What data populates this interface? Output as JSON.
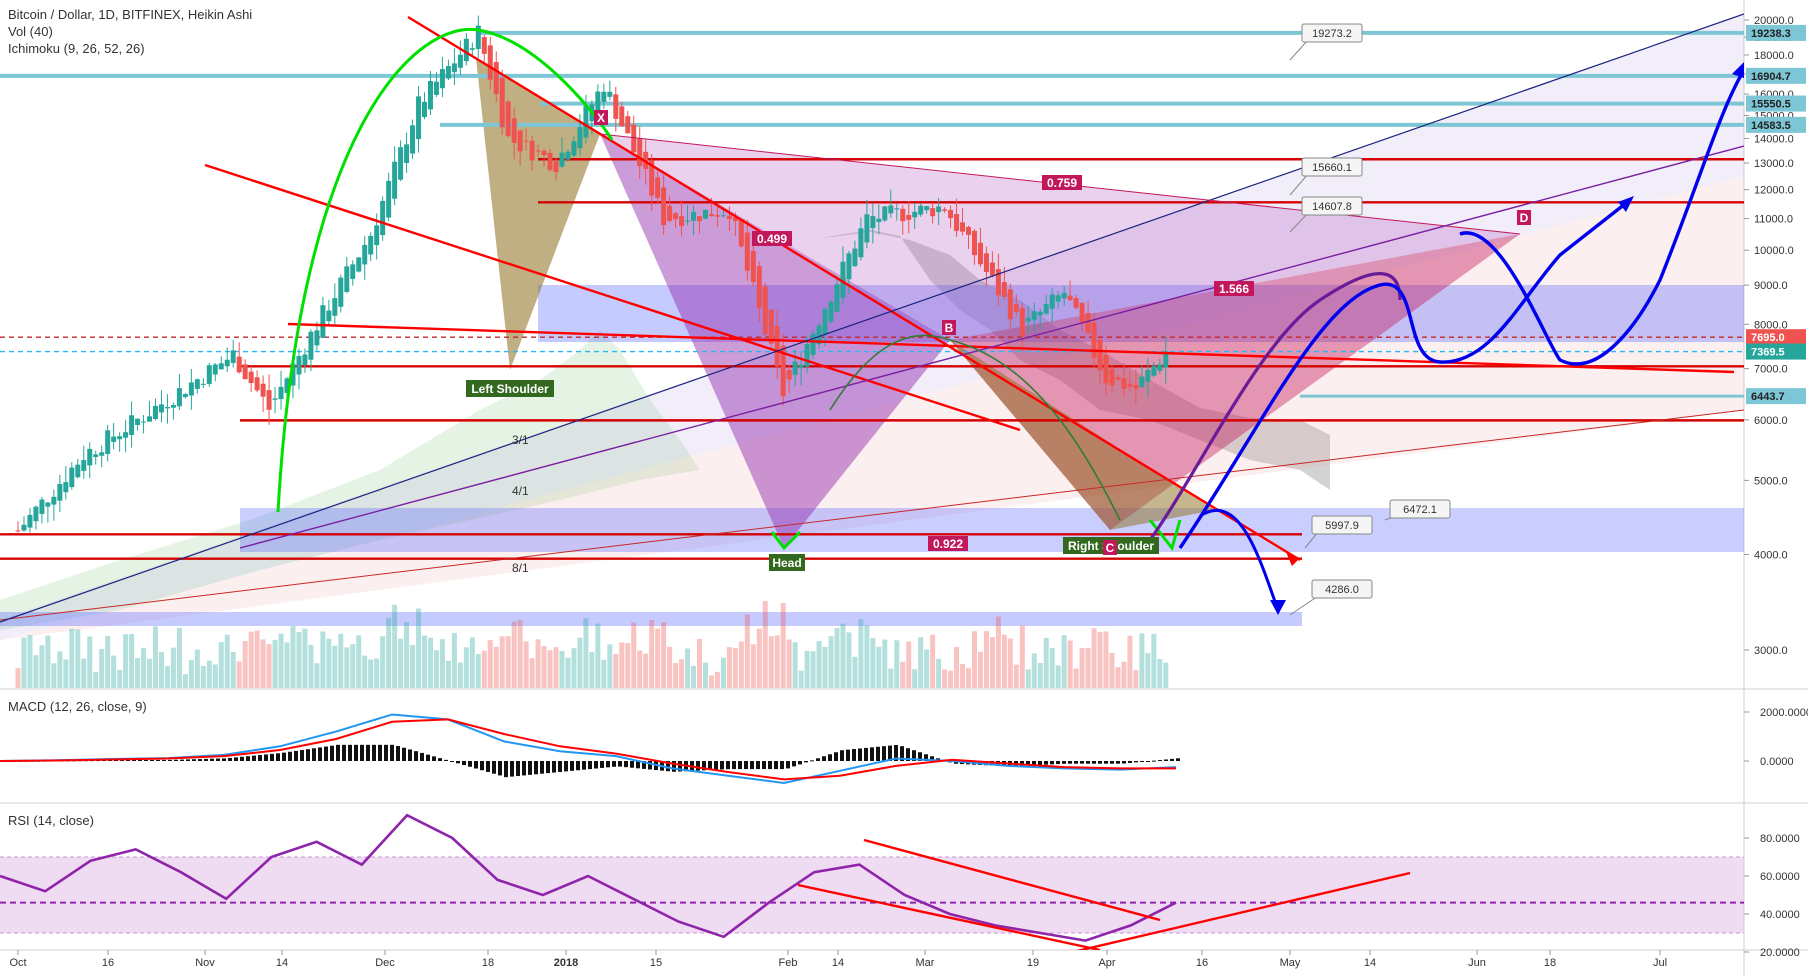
{
  "header": {
    "title": "Bitcoin / Dollar, 1D, BITFINEX, Heikin Ashi",
    "volume": "Vol (40)",
    "ichimoku": "Ichimoku (9, 26, 52, 26)"
  },
  "colors": {
    "up": "#26a69a",
    "down": "#ef5350",
    "trend_red": "#ff0000",
    "forecast_blue": "#0000ee",
    "hs_green": "#00ee00",
    "harmonic": "#9c27b0",
    "level_cyan": "#7cc6d6",
    "zone_blue": "#9aa3ff",
    "rsi_line": "#8e24aa",
    "macd_line": "#2196f3",
    "signal_line": "#ff0000"
  },
  "chart_data": [
    {
      "type": "candlestick",
      "title": "Bitcoin / Dollar, 1D, BITFINEX, Heikin Ashi",
      "y_scale": "log",
      "ylim": [
        2600,
        21000
      ],
      "y_ticks": [
        "20000.0",
        "19000.0",
        "18000.0",
        "17000.0",
        "16000.0",
        "15000.0",
        "14000.0",
        "13000.0",
        "12000.0",
        "11000.0",
        "10000.0",
        "9000.0",
        "8000.0",
        "7000.0",
        "6000.0",
        "5000.0",
        "4000.0",
        "3000.0"
      ],
      "x_ticks": [
        "Oct",
        "16",
        "Nov",
        "14",
        "Dec",
        "18",
        "2018",
        "15",
        "Feb",
        "14",
        "Mar",
        "19",
        "Apr",
        "16",
        "May",
        "14",
        "Jun",
        "18",
        "Jul"
      ],
      "close_path": [
        {
          "date": "2017-10-01",
          "price": 4300
        },
        {
          "date": "2017-10-12",
          "price": 5400
        },
        {
          "date": "2017-10-21",
          "price": 6000
        },
        {
          "date": "2017-11-06",
          "price": 7300
        },
        {
          "date": "2017-11-12",
          "price": 6200
        },
        {
          "date": "2017-11-20",
          "price": 8000
        },
        {
          "date": "2017-11-29",
          "price": 10500
        },
        {
          "date": "2017-12-07",
          "price": 15500
        },
        {
          "date": "2017-12-17",
          "price": 19300
        },
        {
          "date": "2017-12-22",
          "price": 14000
        },
        {
          "date": "2017-12-30",
          "price": 13000
        },
        {
          "date": "2018-01-07",
          "price": 16500
        },
        {
          "date": "2018-01-17",
          "price": 11000
        },
        {
          "date": "2018-01-28",
          "price": 11300
        },
        {
          "date": "2018-02-06",
          "price": 6500
        },
        {
          "date": "2018-02-20",
          "price": 11000
        },
        {
          "date": "2018-03-05",
          "price": 11400
        },
        {
          "date": "2018-03-18",
          "price": 7900
        },
        {
          "date": "2018-03-25",
          "price": 8800
        },
        {
          "date": "2018-04-01",
          "price": 6800
        },
        {
          "date": "2018-04-06",
          "price": 6600
        },
        {
          "date": "2018-04-11",
          "price": 7369.5
        }
      ],
      "horizontal_levels": [
        {
          "label": "19238.3",
          "price": 19238.3
        },
        {
          "label": "16904.7",
          "price": 16904.7
        },
        {
          "label": "15550.5",
          "price": 15550.5
        },
        {
          "label": "14583.5",
          "price": 14583.5
        },
        {
          "label": "7695.0",
          "price": 7695.0
        },
        {
          "label": "7369.5",
          "price": 7369.5
        },
        {
          "label": "6443.7",
          "price": 6443.7
        }
      ],
      "callouts": [
        "19273.2",
        "15660.1",
        "14607.8",
        "6472.1",
        "5997.9",
        "4286.0"
      ],
      "annotations": [
        "Left Shoulder",
        "Head",
        "Right Shoulder",
        "X",
        "B",
        "C",
        "D",
        "0.499",
        "0.759",
        "1.566",
        "0.922",
        "3/1",
        "4/1",
        "8/1"
      ]
    },
    {
      "type": "bar",
      "title": "Vol (40)"
    },
    {
      "type": "line",
      "title": "MACD (12, 26, close, 9)",
      "y_ticks": [
        "2000.0000",
        "0.0000"
      ],
      "series": [
        {
          "name": "MACD",
          "values": [
            0,
            30,
            80,
            120,
            250,
            600,
            1200,
            1900,
            1700,
            800,
            400,
            200,
            -300,
            -600,
            -900,
            -400,
            100,
            0,
            -200,
            -300,
            -350,
            -250
          ]
        },
        {
          "name": "Signal",
          "values": [
            0,
            20,
            60,
            100,
            200,
            450,
            900,
            1600,
            1700,
            1100,
            600,
            300,
            -100,
            -450,
            -750,
            -600,
            -200,
            50,
            -100,
            -250,
            -300,
            -300
          ]
        }
      ]
    },
    {
      "type": "line",
      "title": "RSI (14, close)",
      "y_ticks": [
        "80.0000",
        "60.0000",
        "40.0000",
        "20.0000"
      ],
      "band": [
        30,
        70
      ],
      "midline": 46,
      "series": [
        {
          "name": "RSI",
          "values": [
            60,
            52,
            68,
            74,
            62,
            48,
            70,
            78,
            66,
            92,
            80,
            58,
            50,
            60,
            48,
            36,
            28,
            46,
            62,
            66,
            50,
            40,
            34,
            30,
            26,
            34,
            46
          ]
        }
      ]
    }
  ]
}
